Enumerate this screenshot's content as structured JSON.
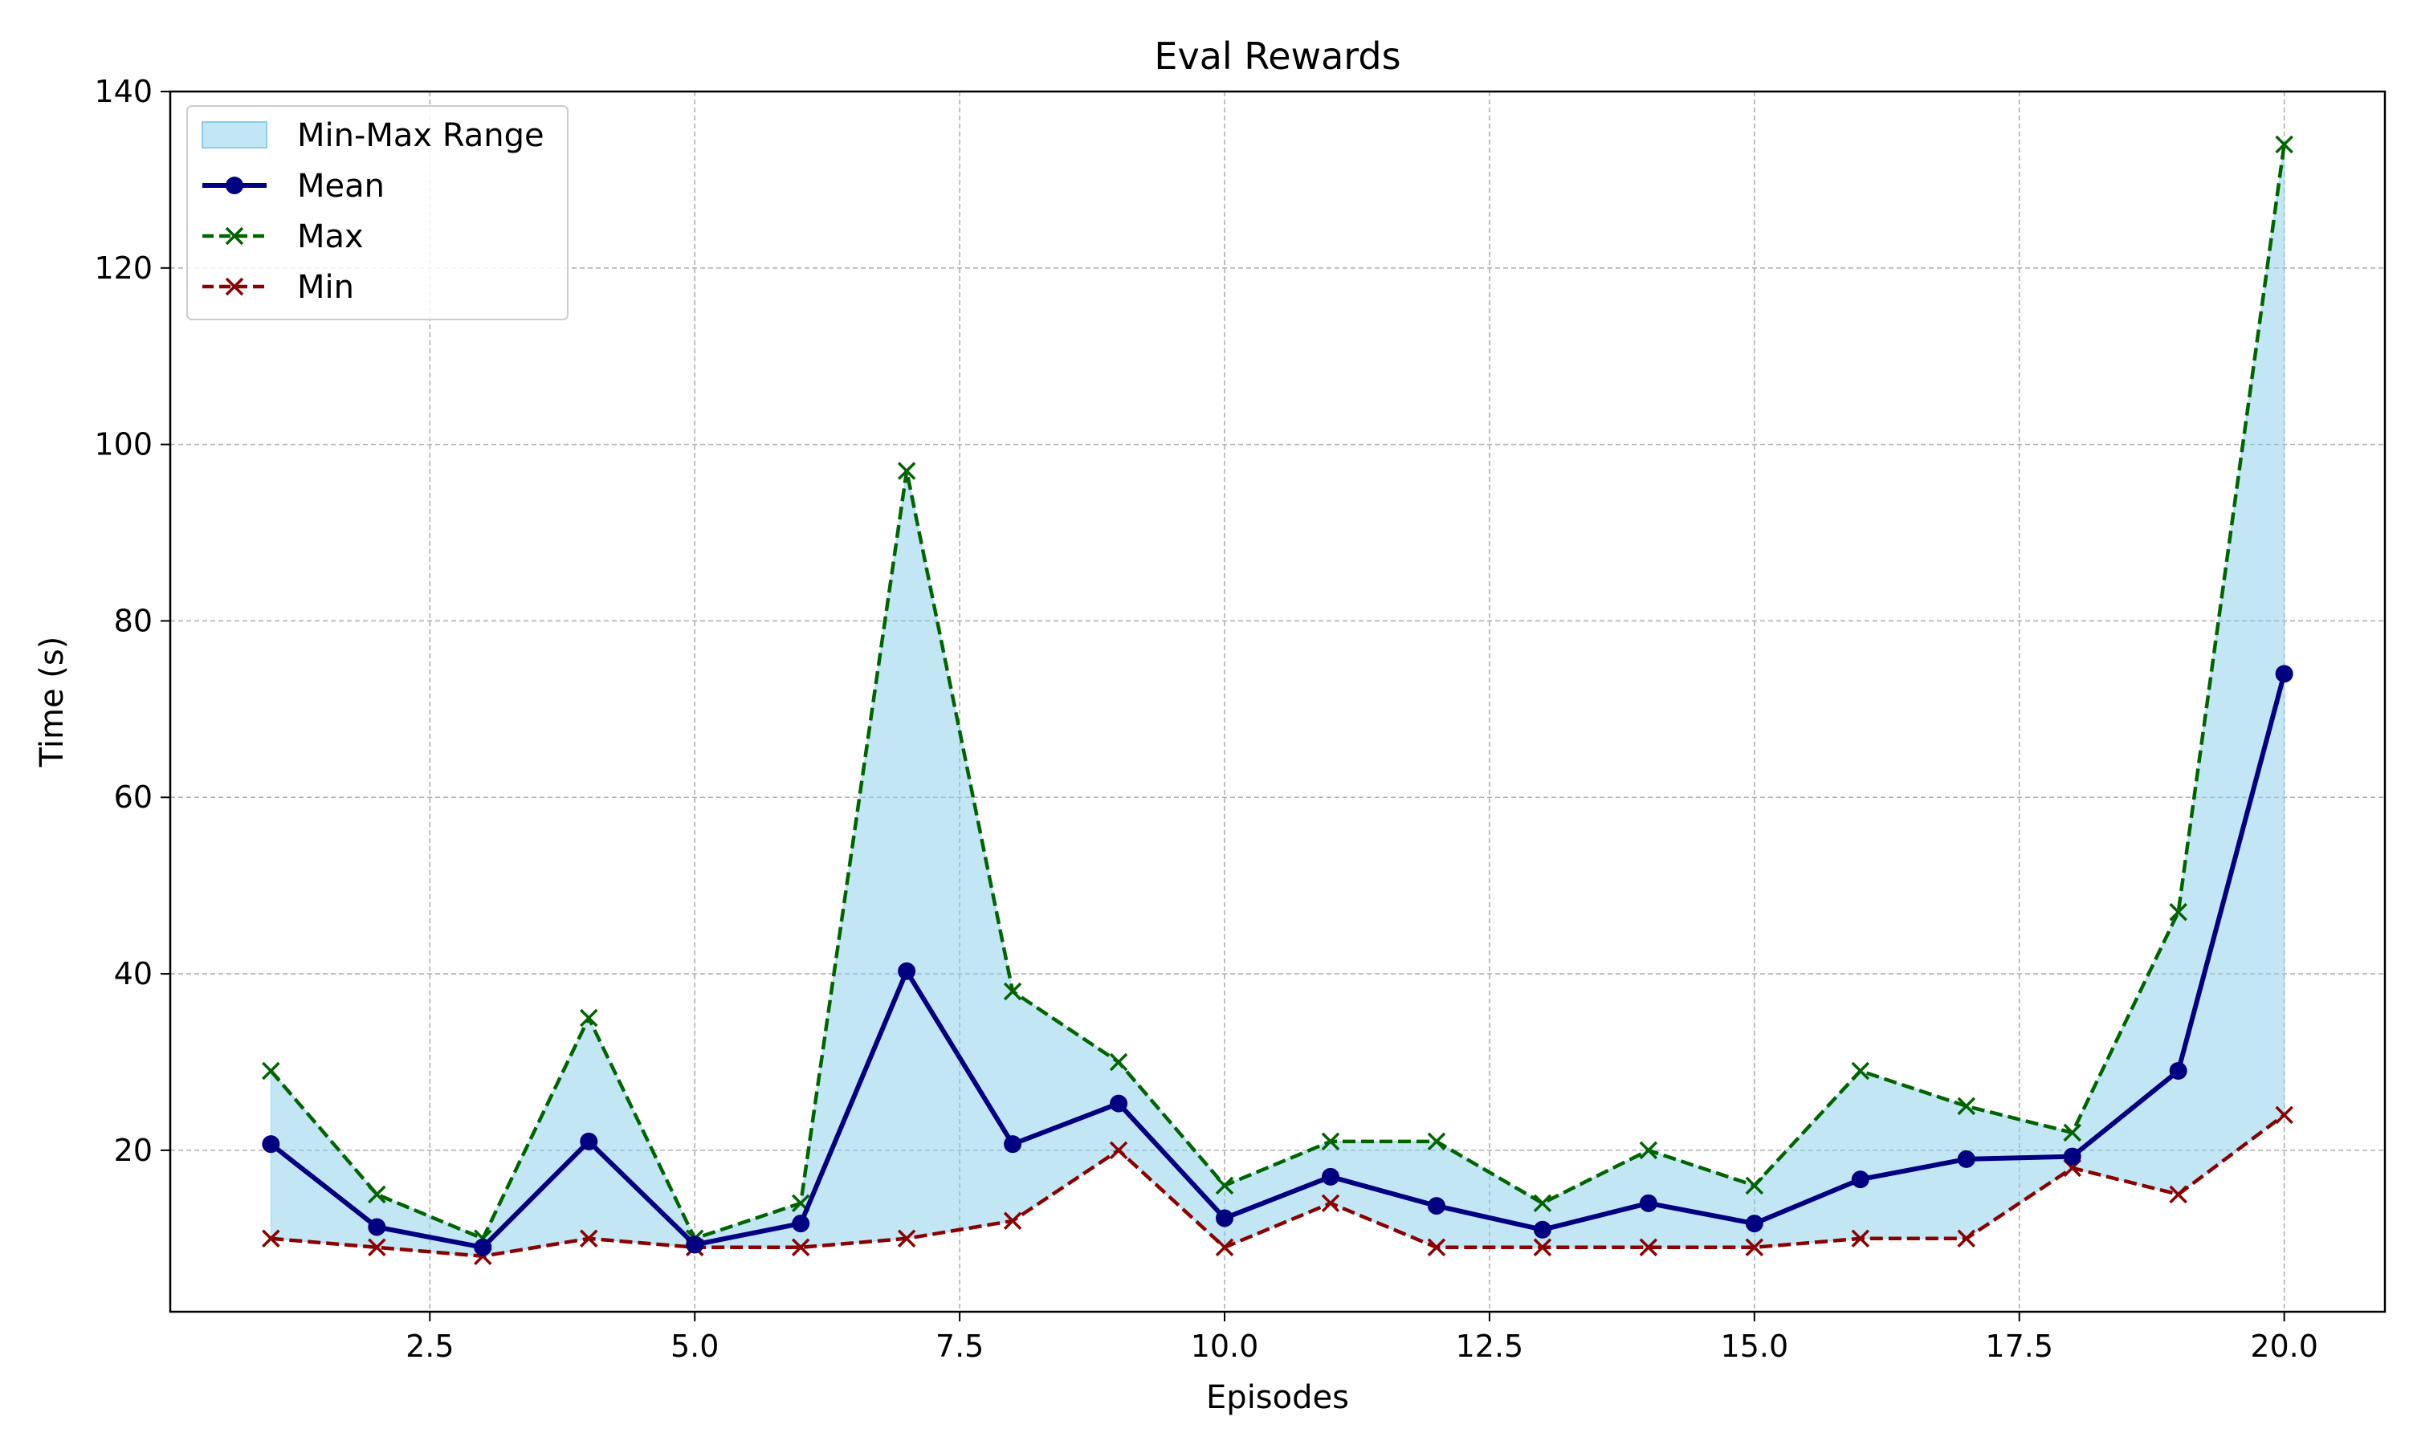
{
  "chart_data": {
    "type": "line",
    "title": "Eval Rewards",
    "xlabel": "Episodes",
    "ylabel": "Time (s)",
    "x": [
      1,
      2,
      3,
      4,
      5,
      6,
      7,
      8,
      9,
      10,
      11,
      12,
      13,
      14,
      15,
      16,
      17,
      18,
      19,
      20
    ],
    "xlim": [
      0.05,
      20.95
    ],
    "ylim": [
      1.7,
      140
    ],
    "x_ticks": [
      2.5,
      5.0,
      7.5,
      10.0,
      12.5,
      15.0,
      17.5,
      20.0
    ],
    "x_tick_labels": [
      "2.5",
      "5.0",
      "7.5",
      "10.0",
      "12.5",
      "15.0",
      "17.5",
      "20.0"
    ],
    "y_ticks": [
      20,
      40,
      60,
      80,
      100,
      120,
      140
    ],
    "y_tick_labels": [
      "20",
      "40",
      "60",
      "80",
      "100",
      "120",
      "140"
    ],
    "grid": true,
    "legend_position": "top-left",
    "band": {
      "name": "Min-Max Range",
      "color": "#87ceeb",
      "lower_series": "Min",
      "upper_series": "Max"
    },
    "series": [
      {
        "name": "Mean",
        "color": "#000080",
        "style": "solid",
        "marker": "circle",
        "values": [
          20.7,
          11.3,
          9.0,
          21.0,
          9.3,
          11.7,
          40.3,
          20.7,
          25.3,
          12.3,
          17.0,
          13.7,
          11.0,
          14.0,
          11.7,
          16.7,
          19.0,
          19.3,
          29.0,
          74.0
        ]
      },
      {
        "name": "Max",
        "color": "#006400",
        "style": "dashed",
        "marker": "x",
        "values": [
          29,
          15,
          10,
          35,
          10,
          14,
          97,
          38,
          30,
          16,
          21,
          21,
          14,
          20,
          16,
          29,
          25,
          22,
          47,
          134
        ]
      },
      {
        "name": "Min",
        "color": "#8b0000",
        "style": "dashed",
        "marker": "x",
        "values": [
          10,
          9,
          8,
          10,
          9,
          9,
          10,
          12,
          20,
          9,
          14,
          9,
          9,
          9,
          9,
          10,
          10,
          18,
          15,
          24
        ]
      }
    ]
  }
}
